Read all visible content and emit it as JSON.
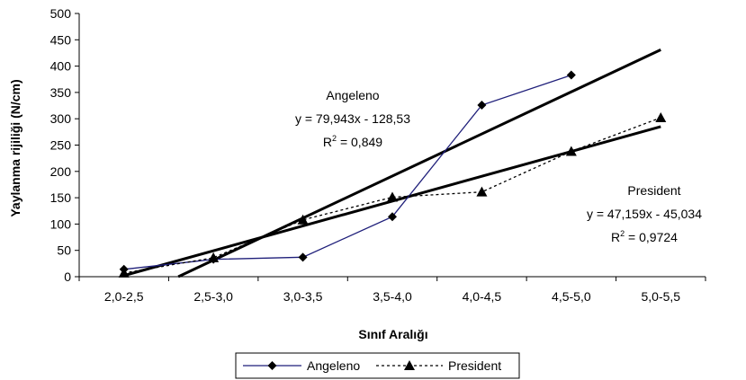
{
  "chart_data": {
    "type": "line",
    "categories": [
      "2,0-2,5",
      "2,5-3,0",
      "3,0-3,5",
      "3,5-4,0",
      "4,0-4,5",
      "4,5-5,0",
      "5,0-5,5"
    ],
    "x": [
      1,
      2,
      3,
      4,
      5,
      6,
      7
    ],
    "xlabel": "Sınıf Aralığı",
    "ylabel": "Yaylanma rijiliği (N/cm)",
    "ylim": [
      0,
      500
    ],
    "yticks": [
      "0",
      "50",
      "100",
      "150",
      "200",
      "250",
      "300",
      "350",
      "400",
      "450",
      "500"
    ],
    "grid": false,
    "legend_position": "bottom",
    "series": [
      {
        "name": "Angeleno",
        "color": "#1f1f7a",
        "marker": "diamond",
        "line_style": "solid",
        "x": [
          1,
          2,
          3,
          4,
          5,
          6
        ],
        "values": [
          14,
          33,
          37,
          114,
          326,
          383
        ]
      },
      {
        "name": "President",
        "color": "#000000",
        "marker": "triangle",
        "line_style": "dotted",
        "x": [
          1,
          2,
          3,
          4,
          5,
          6,
          7
        ],
        "values": [
          7,
          36,
          108,
          151,
          161,
          238,
          302
        ]
      }
    ],
    "trendlines": [
      {
        "series": "Angeleno",
        "slope": 79.943,
        "intercept": -128.53,
        "x_range": [
          1,
          7
        ]
      },
      {
        "series": "President",
        "slope": 47.159,
        "intercept": -45.034,
        "x_range": [
          1,
          7
        ]
      }
    ],
    "annotations": [
      {
        "name": "Angeleno",
        "title": "Angeleno",
        "equation": "y = 79,943x - 128,53",
        "r2_prefix": "R",
        "r2_sup": "2",
        "r2_value": " = 0,849"
      },
      {
        "name": "President",
        "title": "President",
        "equation": "y = 47,159x - 45,034",
        "r2_prefix": "R",
        "r2_sup": "2",
        "r2_value": " = 0,9724"
      }
    ]
  }
}
